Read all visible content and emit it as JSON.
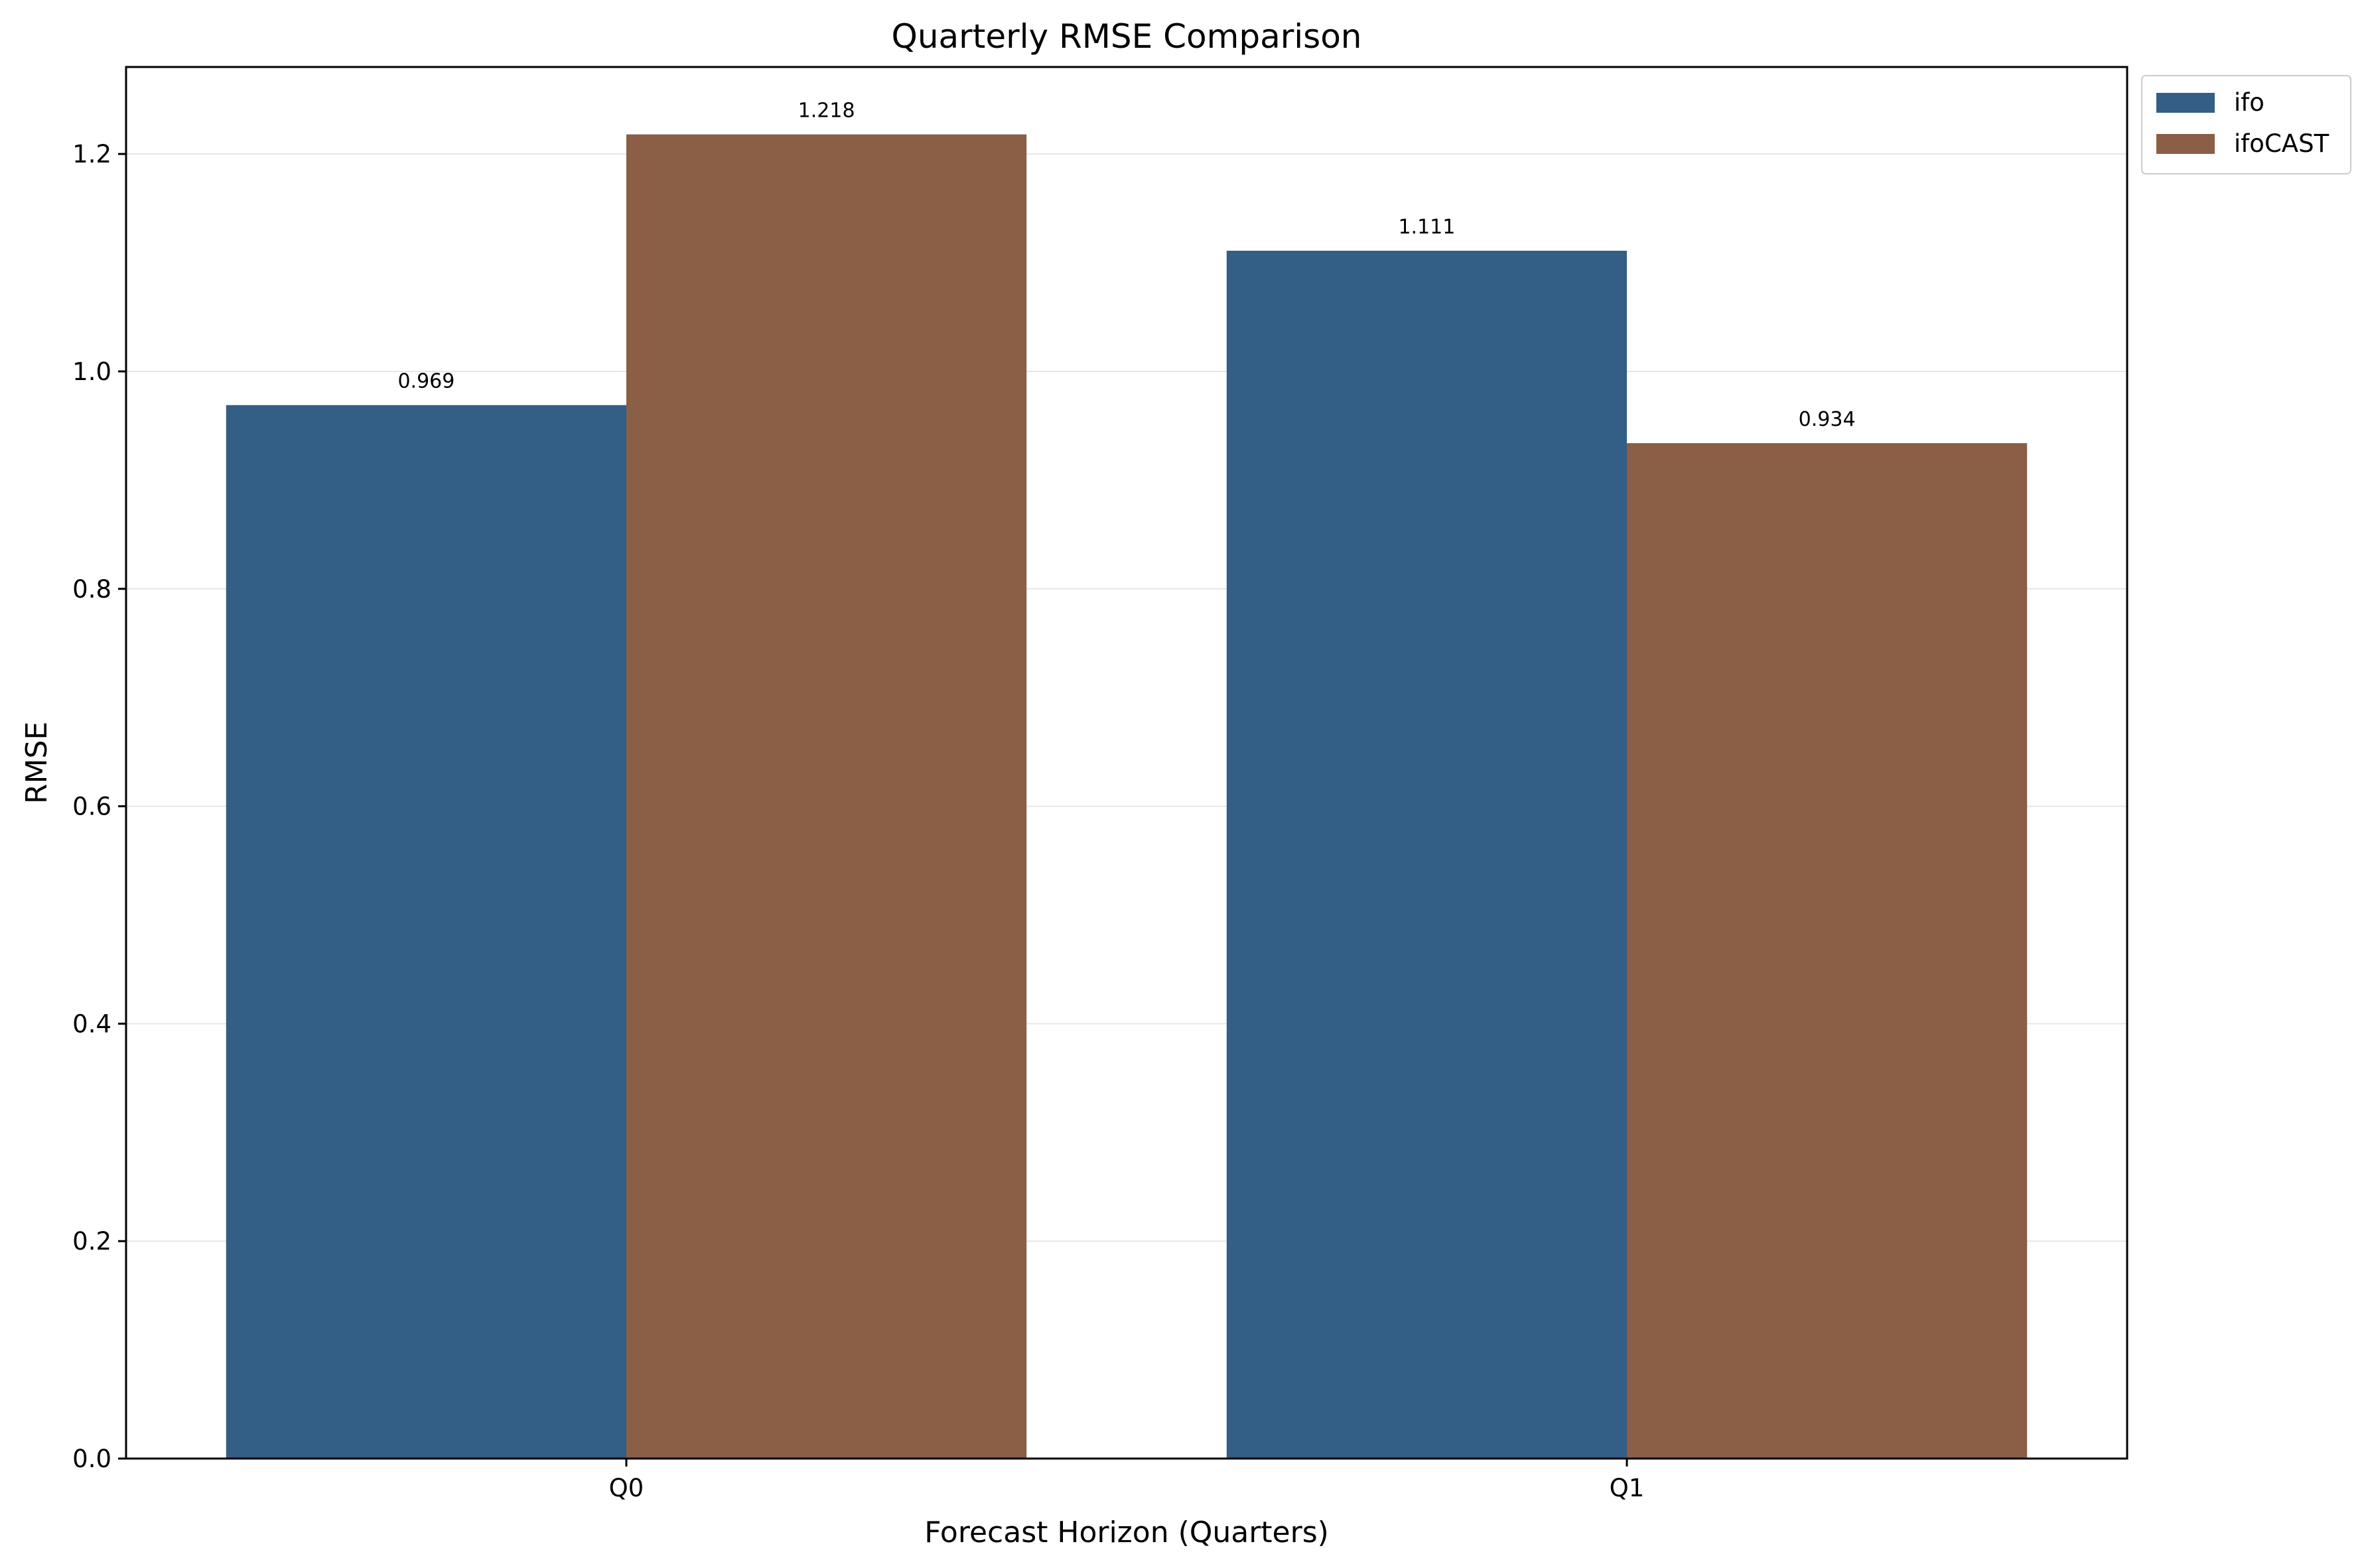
{
  "chart_data": {
    "type": "bar",
    "title": "Quarterly RMSE Comparison",
    "xlabel": "Forecast Horizon (Quarters)",
    "ylabel": "RMSE",
    "categories": [
      "Q0",
      "Q1"
    ],
    "series": [
      {
        "name": "ifo",
        "values": [
          0.969,
          1.111
        ],
        "labels": [
          "0.969",
          "1.111"
        ],
        "color": "#335e85"
      },
      {
        "name": "ifoCAST",
        "values": [
          1.218,
          0.934
        ],
        "labels": [
          "1.218",
          "0.934"
        ],
        "color": "#8b5e46"
      }
    ],
    "ylim": [
      0,
      1.28
    ],
    "yticks": [
      0.0,
      0.2,
      0.4,
      0.6,
      0.8,
      1.0,
      1.2
    ],
    "ytick_labels": [
      "0.0",
      "0.2",
      "0.4",
      "0.6",
      "0.8",
      "1.0",
      "1.2"
    ],
    "grid": "horizontal",
    "legend_position": "outside top-right"
  }
}
